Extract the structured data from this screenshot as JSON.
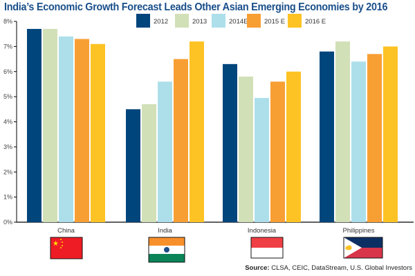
{
  "chart_data": {
    "type": "bar",
    "title": "India’s Economic Growth Forecast Leads Other Asian Emerging Economies by 2016",
    "xlabel": "",
    "ylabel": "",
    "ylim": [
      0,
      8
    ],
    "yticks": [
      "0%",
      "1%",
      "2%",
      "3%",
      "4%",
      "5%",
      "6%",
      "7%",
      "8%"
    ],
    "grid": false,
    "legend_position": "top-center",
    "categories": [
      "China",
      "India",
      "Indonesia",
      "Philippines"
    ],
    "series": [
      {
        "name": "2012",
        "color": "#00457c",
        "values": [
          7.7,
          4.5,
          6.3,
          6.8
        ]
      },
      {
        "name": "2013",
        "color": "#d1e0b7",
        "values": [
          7.7,
          4.7,
          5.8,
          7.2
        ]
      },
      {
        "name": "2014E",
        "color": "#addfea",
        "values": [
          7.4,
          5.6,
          4.95,
          6.4
        ]
      },
      {
        "name": "2015 E",
        "color": "#f89f34",
        "values": [
          7.3,
          6.5,
          5.6,
          6.7
        ]
      },
      {
        "name": "2016 E",
        "color": "#fdc224",
        "values": [
          7.1,
          7.2,
          6.0,
          7.0
        ]
      }
    ],
    "flags": [
      "china-flag",
      "india-flag",
      "indonesia-flag",
      "philippines-flag"
    ]
  },
  "source": {
    "label": "Source:",
    "text": " CLSA, CEIC, DataStream, U.S. Global Investors"
  }
}
